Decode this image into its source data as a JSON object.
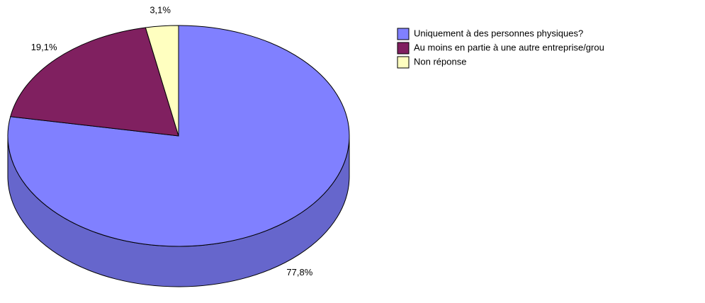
{
  "chart_data": {
    "type": "pie",
    "categories": [
      "Uniquement à des personnes physiques?",
      "Au moins en partie à une autre entreprise/grou",
      "Non réponse"
    ],
    "values": [
      77.8,
      19.1,
      3.1
    ],
    "value_labels": [
      "77,8%",
      "19,1%",
      "3,1%"
    ],
    "colors": [
      "#8080ff",
      "#802060",
      "#ffffc0"
    ],
    "legend": "right"
  }
}
